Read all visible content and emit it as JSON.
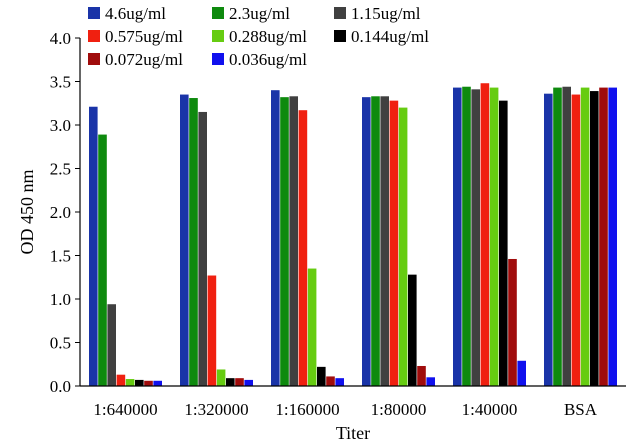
{
  "chart_data": {
    "type": "bar",
    "title": "",
    "xlabel": "Titer",
    "ylabel": "OD 450 nm",
    "ylim": [
      0,
      4.0
    ],
    "yticks": [
      "0.0",
      "0.5",
      "1.0",
      "1.5",
      "2.0",
      "2.5",
      "3.0",
      "3.5",
      "4.0"
    ],
    "grid": false,
    "legend_position": "top",
    "categories": [
      "1:640000",
      "1:320000",
      "1:160000",
      "1:80000",
      "1:40000",
      "BSA"
    ],
    "series": [
      {
        "name": "4.6ug/ml",
        "color": "#1a34a8",
        "values": [
          3.21,
          3.35,
          3.4,
          3.32,
          3.43,
          3.36
        ]
      },
      {
        "name": "2.3ug/ml",
        "color": "#0e8a0e",
        "values": [
          2.89,
          3.31,
          3.32,
          3.33,
          3.44,
          3.43
        ]
      },
      {
        "name": "1.15ug/ml",
        "color": "#404040",
        "values": [
          0.94,
          3.15,
          3.33,
          3.33,
          3.41,
          3.44
        ]
      },
      {
        "name": "0.575ug/ml",
        "color": "#f02010",
        "values": [
          0.13,
          1.27,
          3.17,
          3.28,
          3.48,
          3.35
        ]
      },
      {
        "name": "0.288ug/ml",
        "color": "#66cc11",
        "values": [
          0.08,
          0.19,
          1.35,
          3.2,
          3.43,
          3.43
        ]
      },
      {
        "name": "0.144ug/ml",
        "color": "#000000",
        "values": [
          0.07,
          0.09,
          0.22,
          1.28,
          3.28,
          3.39
        ]
      },
      {
        "name": "0.072ug/ml",
        "color": "#a00c0c",
        "values": [
          0.06,
          0.09,
          0.11,
          0.23,
          1.46,
          3.43
        ]
      },
      {
        "name": "0.036ug/ml",
        "color": "#1010ee",
        "values": [
          0.06,
          0.07,
          0.09,
          0.1,
          0.29,
          3.43
        ]
      }
    ]
  }
}
